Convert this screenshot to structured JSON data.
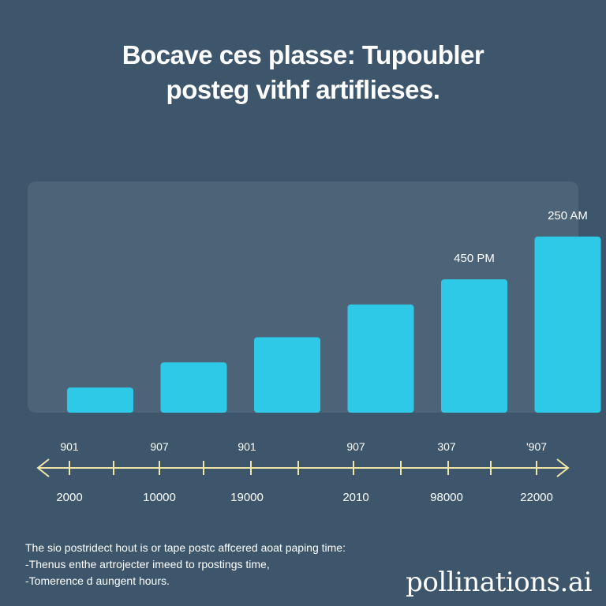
{
  "title_lines": [
    "Bocave ces plasse: Tupoubler",
    "posteg vithf artiflieses."
  ],
  "colors": {
    "background": "#3d566b",
    "panel": "#4d6478",
    "bar": "#2ec9e6",
    "axis": "#f0e6a8",
    "text": "#ffffff"
  },
  "chart_data": {
    "type": "bar",
    "categories": [
      "2000",
      "10000",
      "19000",
      "2010",
      "98000",
      "22000"
    ],
    "values": [
      1,
      2,
      3,
      4.3,
      5.3,
      7
    ],
    "ylim": [
      0,
      9
    ],
    "bar_labels": [
      "",
      "",
      "",
      "",
      "450 PM",
      "250 AM"
    ],
    "axis_top_labels": [
      "901",
      "907",
      "901",
      "907",
      "307",
      "'907"
    ],
    "axis_bottom_labels": [
      "2000",
      "10000",
      "19000",
      "2010",
      "98000",
      "22000"
    ],
    "grid": false,
    "legend": "none"
  },
  "footnote_lines": [
    "The sio postridect hout is or tape postc affcered aoat paping time:",
    "-Thenus enthe artrojecter imeed to rpostings time,",
    "-Tomerence d aungent hours."
  ],
  "watermark": "pollinations.ai"
}
